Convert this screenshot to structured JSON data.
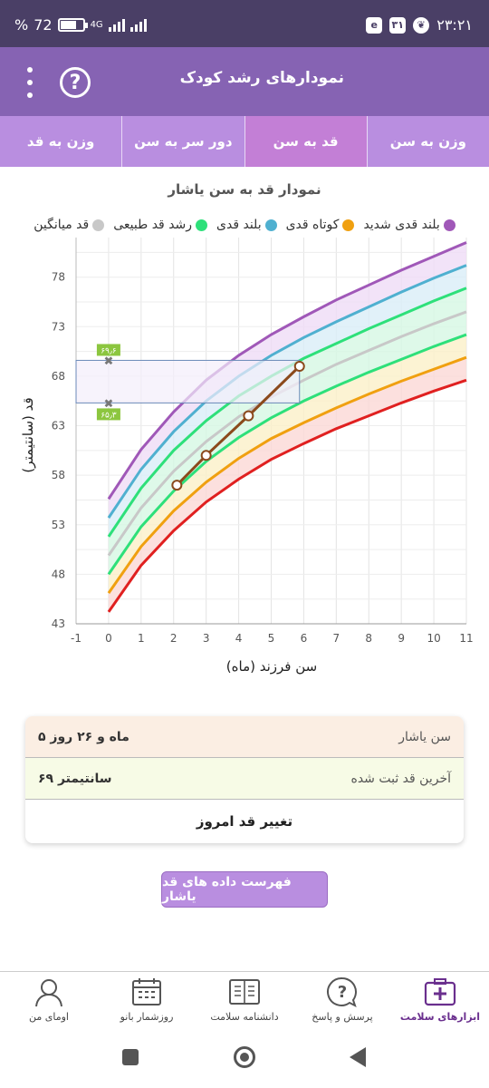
{
  "status": {
    "battery": "72",
    "battery_pct": 0.72,
    "battery_suffix": "%",
    "network": "4G",
    "time": "۲۳:۲۱",
    "notif": "۳۱"
  },
  "appbar": {
    "title": "نمودارهای رشد کودک",
    "help_glyph": "?"
  },
  "tabs": [
    "وزن به سن",
    "قد به سن",
    "دور سر به سن",
    "وزن به قد"
  ],
  "active_tab": 1,
  "chart_data": {
    "type": "line",
    "title": "نمودار قد به سن یاشار",
    "xlabel": "سن فرزند (ماه)",
    "ylabel": "قد (سانتیمتر)",
    "xlim": [
      -1,
      11
    ],
    "ylim": [
      43,
      82
    ],
    "x_ticks": [
      -1,
      0,
      1,
      2,
      3,
      4,
      5,
      6,
      7,
      8,
      9,
      10,
      11
    ],
    "y_ticks": [
      43,
      48,
      53,
      58,
      63,
      68,
      73,
      78
    ],
    "grid": true,
    "legend_position": "top",
    "x": [
      0,
      1,
      2,
      3,
      4,
      5,
      6,
      7,
      8,
      9,
      10,
      11
    ],
    "series": [
      {
        "name": "بلند قدی شدید",
        "color": "#a058b8",
        "values": [
          55.6,
          60.6,
          64.4,
          67.6,
          70.1,
          72.2,
          74.0,
          75.7,
          77.2,
          78.7,
          80.1,
          81.5
        ]
      },
      {
        "name": "بلند قدی",
        "color": "#4fb0d0",
        "values": [
          53.7,
          58.6,
          62.4,
          65.5,
          68.0,
          70.1,
          71.9,
          73.5,
          75.0,
          76.5,
          77.9,
          79.2
        ]
      },
      {
        "name": "رشد قد طبیعی",
        "color": "#2ee07a",
        "values": [
          51.8,
          56.7,
          60.5,
          63.5,
          66.0,
          68.0,
          69.8,
          71.3,
          72.8,
          74.2,
          75.6,
          76.9
        ]
      },
      {
        "name": "قد میانگین",
        "color": "#c8c8c8",
        "values": [
          49.9,
          54.7,
          58.4,
          61.4,
          63.9,
          65.9,
          67.6,
          69.2,
          70.6,
          72.0,
          73.3,
          74.5
        ]
      },
      {
        "name": "",
        "color": "#2ee07a",
        "values": [
          48.0,
          52.8,
          56.4,
          59.4,
          61.8,
          63.8,
          65.5,
          67.0,
          68.4,
          69.7,
          71.0,
          72.2
        ]
      },
      {
        "name": "کوتاه قدی",
        "color": "#f0a010",
        "values": [
          46.1,
          50.8,
          54.4,
          57.3,
          59.7,
          61.7,
          63.3,
          64.8,
          66.2,
          67.5,
          68.7,
          69.9
        ]
      },
      {
        "name": "",
        "color": "#e02020",
        "values": [
          44.2,
          48.9,
          52.4,
          55.3,
          57.6,
          59.6,
          61.2,
          62.7,
          64.0,
          65.3,
          66.5,
          67.6
        ]
      }
    ],
    "child": {
      "name": "یاشار",
      "color": "#8b4a1c",
      "x": [
        2.1,
        3.0,
        4.3,
        5.87
      ],
      "values": [
        57.0,
        60.0,
        64.0,
        69.0
      ]
    },
    "range_markers": {
      "upper_label": "۶۹٫۶",
      "upper_value": 69.6,
      "lower_label": "۶۵٫۳",
      "lower_value": 65.3
    }
  },
  "info": {
    "age_label": "سن یاشار",
    "age_value": "۵ ماه و ۲۶ روز",
    "last_label": "آخرین قد ثبت شده",
    "last_value": "۶۹ سانتیمتر",
    "change_btn": "تغییر قد امروز"
  },
  "list_btn": "فهرست داده های قد یاشار",
  "bottom_nav": [
    {
      "label": "ابزارهای سلامت",
      "icon": "health-kit-icon"
    },
    {
      "label": "پرسش و پاسخ",
      "icon": "question-bubble-icon"
    },
    {
      "label": "دانشنامه سلامت",
      "icon": "encyclopedia-icon"
    },
    {
      "label": "روزشمار بانو",
      "icon": "calendar-icon"
    },
    {
      "label": "اومای من",
      "icon": "profile-icon"
    }
  ]
}
